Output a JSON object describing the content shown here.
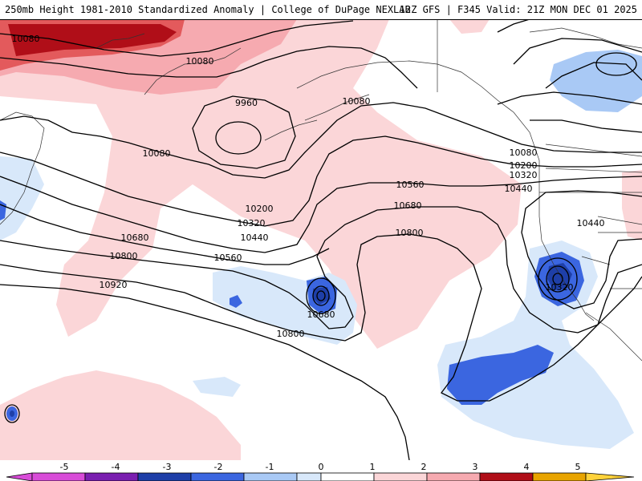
{
  "header": {
    "left_title": "250mb Height 1981-2010 Standardized Anomaly | College of DuPage NEXLAB",
    "right_title": "12Z GFS | F345 Valid: 21Z MON DEC 01 2025"
  },
  "map": {
    "field": "250mb Height",
    "contour_labels": [
      "10080",
      "10080",
      "9960",
      "10080",
      "10080",
      "10080",
      "10200",
      "10320",
      "10440",
      "10560",
      "10680",
      "10200",
      "10320",
      "10440",
      "10560",
      "10680",
      "10800",
      "10920",
      "10680",
      "10800",
      "10800",
      "10320",
      "10440"
    ]
  },
  "colorbar": {
    "ticks": [
      "-5",
      "-4",
      "-3",
      "-2",
      "-1",
      "0",
      "1",
      "2",
      "3",
      "4",
      "5"
    ],
    "colors": {
      "neg5": "#d84cd8",
      "neg4": "#7a1fb0",
      "neg3": "#1e3fa8",
      "neg2": "#3b66e0",
      "neg1": "#a9c9f5",
      "neg0": "#d8e8fa",
      "pos0": "#fbd6d8",
      "pos1": "#f6aab0",
      "pos2": "#e35a5c",
      "pos3": "#b00e18",
      "pos4": "#e8a400",
      "pos5": "#ffd23a"
    }
  }
}
